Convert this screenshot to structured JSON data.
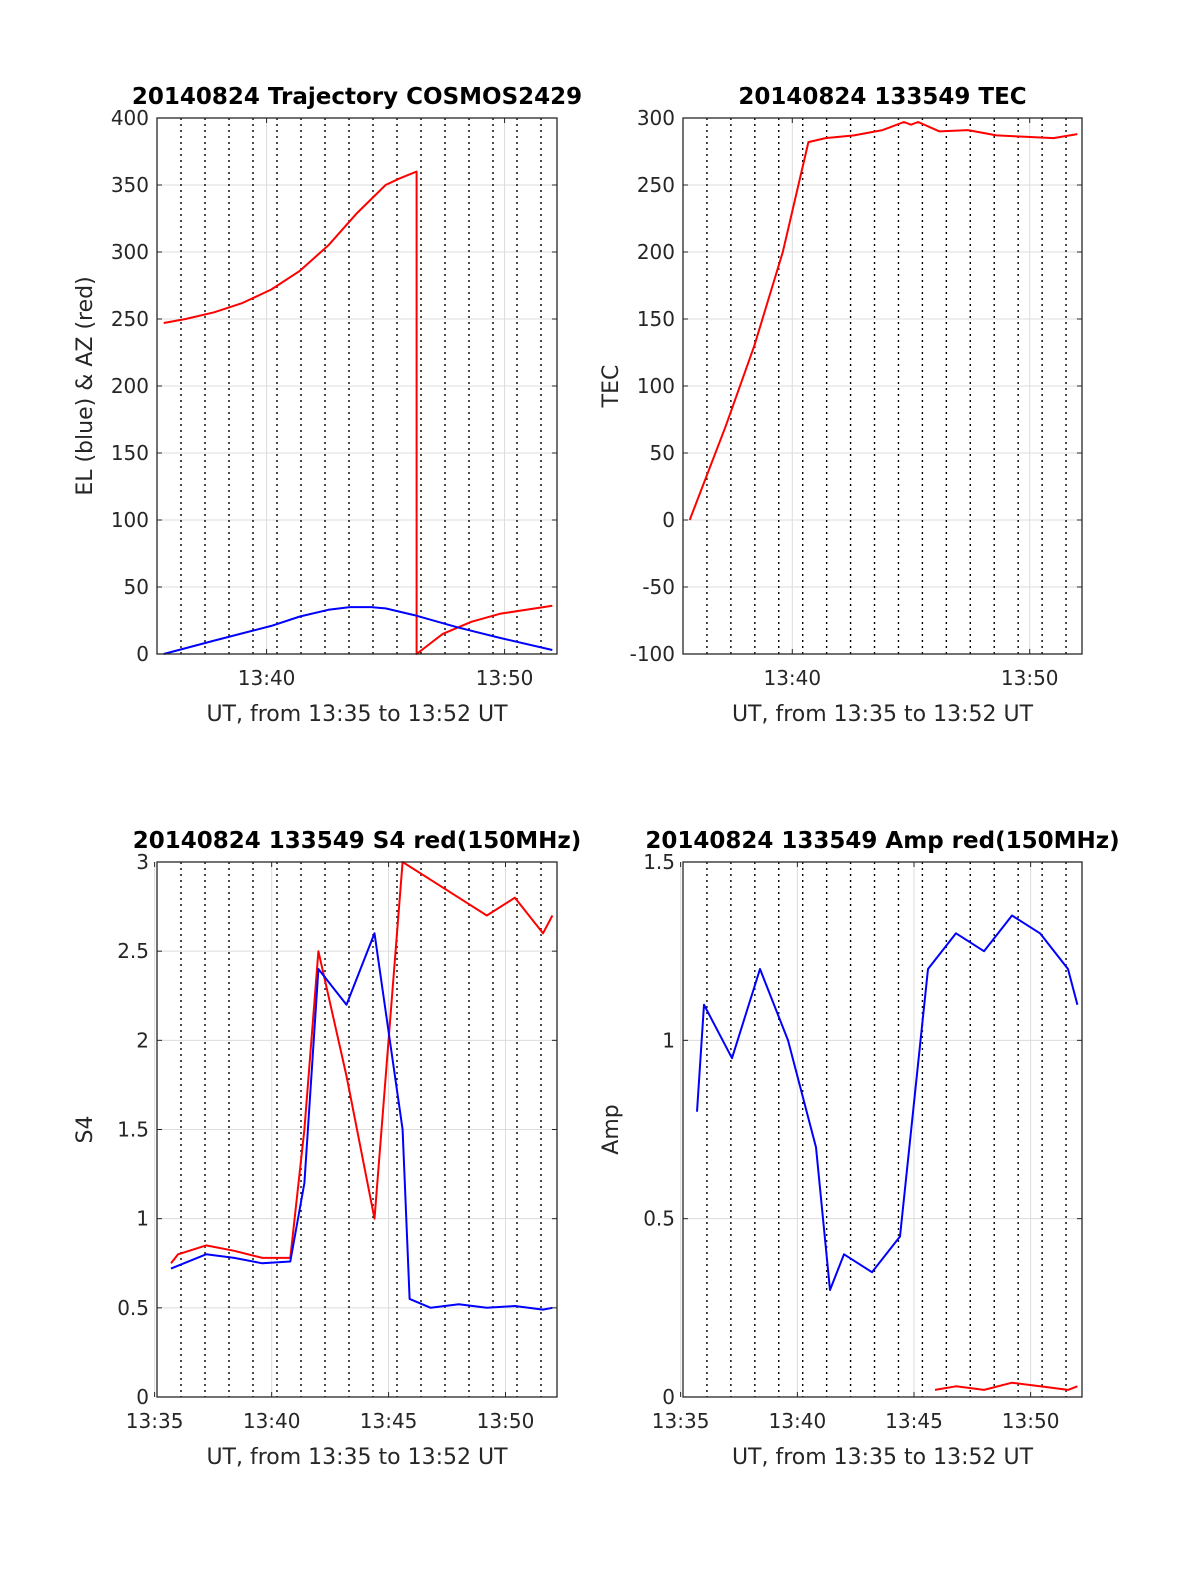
{
  "chart_data": [
    {
      "type": "line",
      "title": "20140824 Trajectory COSMOS2429",
      "xlabel": "UT, from 13:35 to 13:52 UT",
      "ylabel": "EL (blue) & AZ (red)",
      "xlim": [
        13.59,
        13.87
      ],
      "ylim": [
        0,
        400
      ],
      "xticks": [
        13.6667,
        13.8333
      ],
      "xtick_labels": [
        "13:40",
        "13:50"
      ],
      "yticks": [
        0,
        50,
        100,
        150,
        200,
        250,
        300,
        350,
        400
      ],
      "ytick_labels": [
        "0",
        "50",
        "100",
        "150",
        "200",
        "250",
        "300",
        "350",
        "400"
      ],
      "grid": true,
      "series": [
        {
          "color": "#ff0000",
          "x": [
            13.5947,
            13.61,
            13.63,
            13.65,
            13.67,
            13.69,
            13.71,
            13.73,
            13.75,
            13.76,
            13.7717,
            13.7717,
            13.79,
            13.81,
            13.83,
            13.8667
          ],
          "y": [
            247,
            250,
            255,
            262,
            272,
            286,
            305,
            329,
            350,
            355,
            360,
            0,
            15,
            24,
            30,
            36
          ]
        },
        {
          "color": "#0000ff",
          "x": [
            13.5947,
            13.63,
            13.67,
            13.69,
            13.71,
            13.725,
            13.74,
            13.75,
            13.77,
            13.8,
            13.83,
            13.8667
          ],
          "y": [
            0,
            10,
            21,
            28,
            33,
            35,
            35,
            34,
            29,
            20,
            12,
            3
          ]
        }
      ]
    },
    {
      "type": "line",
      "title": "20140824 133549 TEC",
      "xlabel": "UT, from 13:35 to 13:52 UT",
      "ylabel": "TEC",
      "xlim": [
        13.59,
        13.87
      ],
      "ylim": [
        -100,
        300
      ],
      "xticks": [
        13.6667,
        13.8333
      ],
      "xtick_labels": [
        "13:40",
        "13:50"
      ],
      "yticks": [
        -100,
        -50,
        0,
        50,
        100,
        150,
        200,
        250,
        300
      ],
      "ytick_labels": [
        "-100",
        "-50",
        "0",
        "50",
        "100",
        "150",
        "200",
        "250",
        "300"
      ],
      "grid": true,
      "series": [
        {
          "color": "#ff0000",
          "x": [
            13.5947,
            13.62,
            13.64,
            13.66,
            13.678,
            13.69,
            13.71,
            13.73,
            13.745,
            13.75,
            13.755,
            13.77,
            13.79,
            13.81,
            13.83,
            13.85,
            13.8667
          ],
          "y": [
            0,
            70,
            130,
            200,
            282,
            285,
            287,
            291,
            297,
            295,
            297,
            290,
            291,
            287,
            286,
            285,
            288
          ]
        }
      ]
    },
    {
      "type": "line",
      "title": "20140824 133549 S4 red(150MHz)",
      "xlabel": "UT, from 13:35 to 13:52 UT",
      "ylabel": "S4",
      "xlim": [
        13.585,
        13.87
      ],
      "ylim": [
        0,
        3
      ],
      "xticks": [
        13.5833,
        13.6667,
        13.75,
        13.8333
      ],
      "xtick_labels": [
        "13:35",
        "13:40",
        "13:45",
        "13:50"
      ],
      "yticks": [
        0,
        0.5,
        1,
        1.5,
        2,
        2.5,
        3
      ],
      "ytick_labels": [
        "0",
        "0.5",
        "1",
        "1.5",
        "2",
        "2.5",
        "3"
      ],
      "grid": true,
      "series": [
        {
          "color": "#ff0000",
          "x": [
            13.595,
            13.6,
            13.62,
            13.64,
            13.66,
            13.68,
            13.69,
            13.7,
            13.72,
            13.74,
            13.76,
            13.78,
            13.8,
            13.82,
            13.84,
            13.86,
            13.8667
          ],
          "y": [
            0.75,
            0.8,
            0.85,
            0.82,
            0.78,
            0.78,
            1.5,
            2.5,
            1.8,
            1.0,
            3.0,
            2.9,
            2.8,
            2.7,
            2.8,
            2.6,
            2.7
          ]
        },
        {
          "color": "#0000ff",
          "x": [
            13.595,
            13.62,
            13.64,
            13.66,
            13.68,
            13.69,
            13.7,
            13.72,
            13.74,
            13.76,
            13.765,
            13.78,
            13.8,
            13.82,
            13.84,
            13.86,
            13.8667
          ],
          "y": [
            0.72,
            0.8,
            0.78,
            0.75,
            0.76,
            1.2,
            2.4,
            2.2,
            2.6,
            1.5,
            0.55,
            0.5,
            0.52,
            0.5,
            0.51,
            0.49,
            0.5
          ]
        }
      ]
    },
    {
      "type": "line",
      "title": "20140824 133549 Amp red(150MHz)",
      "xlabel": "UT, from 13:35 to 13:52 UT",
      "ylabel": "Amp",
      "xlim": [
        13.585,
        13.87
      ],
      "ylim": [
        0,
        1.5
      ],
      "xticks": [
        13.5833,
        13.6667,
        13.75,
        13.8333
      ],
      "xtick_labels": [
        "13:35",
        "13:40",
        "13:45",
        "13:50"
      ],
      "yticks": [
        0,
        0.5,
        1,
        1.5
      ],
      "ytick_labels": [
        "0",
        "0.5",
        "1",
        "1.5"
      ],
      "grid": true,
      "series": [
        {
          "color": "#0000ff",
          "x": [
            13.595,
            13.6,
            13.62,
            13.64,
            13.66,
            13.68,
            13.69,
            13.7,
            13.72,
            13.74,
            13.76,
            13.78,
            13.8,
            13.82,
            13.84,
            13.86,
            13.8667
          ],
          "y": [
            0.8,
            1.1,
            0.95,
            1.2,
            1.0,
            0.7,
            0.3,
            0.4,
            0.35,
            0.45,
            1.2,
            1.3,
            1.25,
            1.35,
            1.3,
            1.2,
            1.1
          ]
        },
        {
          "color": "#ff0000",
          "x": [
            13.765,
            13.78,
            13.8,
            13.82,
            13.84,
            13.86,
            13.8667
          ],
          "y": [
            0.02,
            0.03,
            0.02,
            0.04,
            0.03,
            0.02,
            0.03
          ]
        }
      ]
    }
  ]
}
